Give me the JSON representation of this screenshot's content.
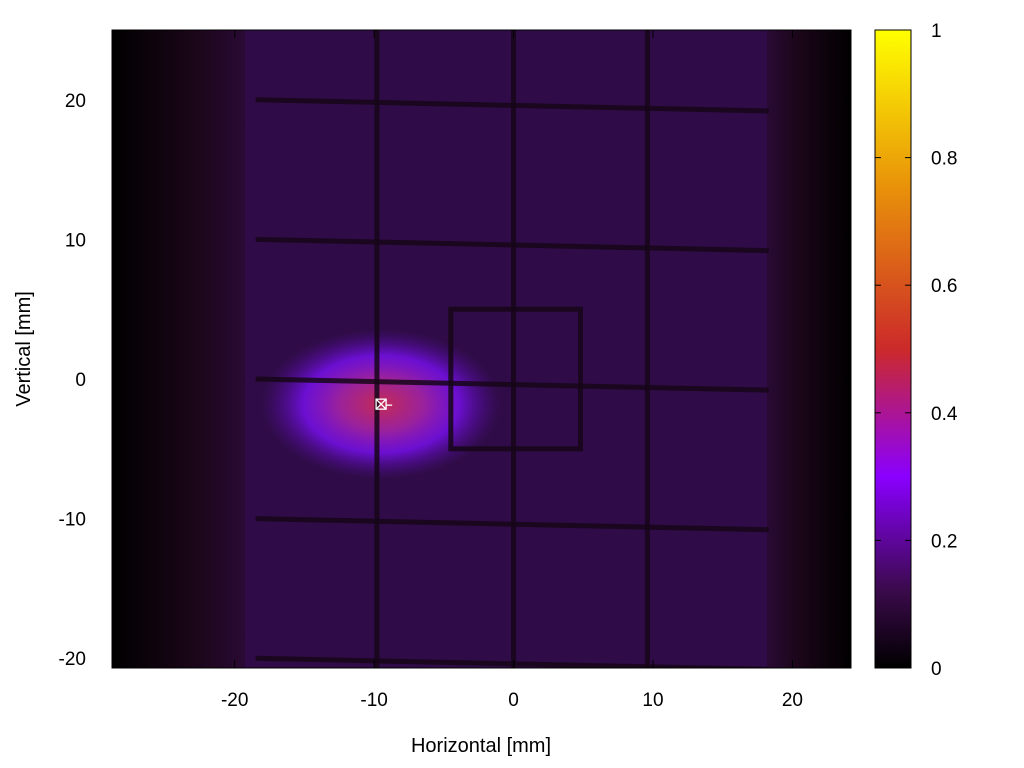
{
  "chart_data": {
    "type": "heatmap",
    "title": "",
    "xlabel": "Horizontal [mm]",
    "ylabel": "Vertical [mm]",
    "xlim": [
      -28.8,
      24.2
    ],
    "ylim": [
      -20.7,
      25
    ],
    "x_ticks": [
      -20,
      -10,
      0,
      10,
      20
    ],
    "x_tick_labels": [
      "-20",
      "-10",
      "0",
      "10",
      "20"
    ],
    "y_ticks": [
      -20,
      -10,
      0,
      10,
      20
    ],
    "y_tick_labels": [
      "-20",
      "-10",
      "0",
      "10",
      "20"
    ],
    "colorbar": {
      "range": [
        0,
        1
      ],
      "ticks": [
        0,
        0.2,
        0.4,
        0.6,
        0.8,
        1
      ],
      "tick_labels": [
        "0",
        "0.2",
        "0.4",
        "0.6",
        "0.8",
        "1"
      ],
      "palette": [
        "#000000",
        "#3a0a4a",
        "#8a00ff",
        "#cc2a2a",
        "#e8900a",
        "#ffff00"
      ]
    },
    "background_level": 0.05,
    "beam_spot": {
      "x": -9.5,
      "y": -1.8,
      "peak": 0.45
    },
    "marker": {
      "x": -9.5,
      "y": -1.8,
      "shape": "crossed-square"
    },
    "grid_lines_x": [
      -9.8,
      0,
      9.6
    ],
    "grid_lines_y": [
      20,
      10,
      0,
      -10,
      -20
    ],
    "inner_square": {
      "x_range": [
        -4.5,
        4.8
      ],
      "y_range": [
        -5,
        5
      ]
    },
    "grid": false
  }
}
